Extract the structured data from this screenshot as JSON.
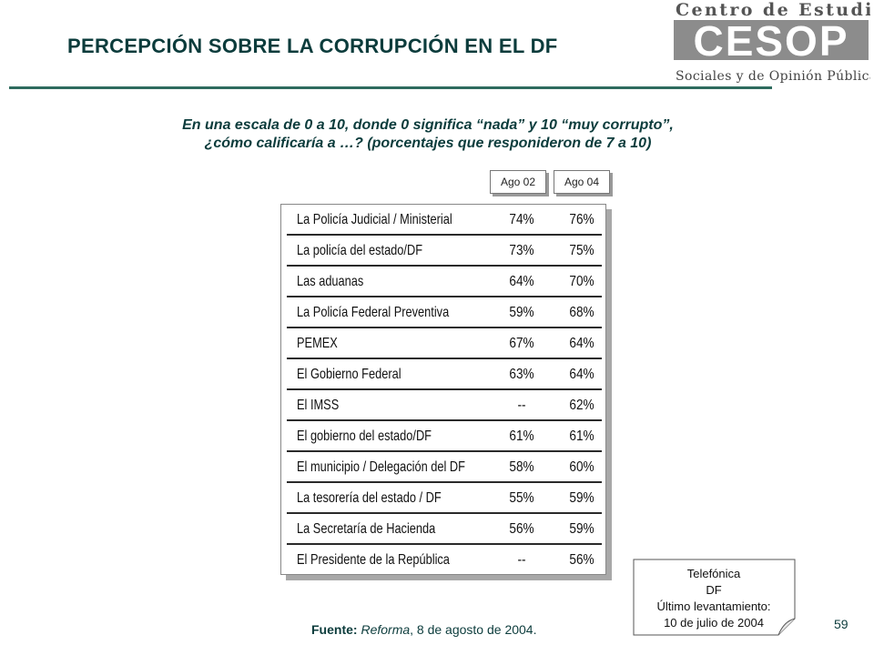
{
  "title": "PERCEPCIÓN SOBRE LA CORRUPCIÓN EN EL DF",
  "logo": {
    "line1": "Centro de Estudios",
    "mark": "CESOP",
    "line2": "Sociales y de Opinión Pública"
  },
  "question": {
    "line1": "En una escala de 0 a 10, donde 0 significa “nada” y 10 “muy corrupto”,",
    "line2": "¿cómo calificaría a …? (porcentajes que responideron de 7 a 10)"
  },
  "columns": [
    "Ago 02",
    "Ago 04"
  ],
  "rows": [
    {
      "label": "La Policía Judicial / Ministerial",
      "ago02": "74%",
      "ago04": "76%"
    },
    {
      "label": "La policía del estado/DF",
      "ago02": "73%",
      "ago04": "75%"
    },
    {
      "label": "Las aduanas",
      "ago02": "64%",
      "ago04": "70%"
    },
    {
      "label": "La Policía Federal Preventiva",
      "ago02": "59%",
      "ago04": "68%"
    },
    {
      "label": "PEMEX",
      "ago02": "67%",
      "ago04": "64%"
    },
    {
      "label": "El Gobierno Federal",
      "ago02": "63%",
      "ago04": "64%"
    },
    {
      "label": "El IMSS",
      "ago02": "--",
      "ago04": "62%"
    },
    {
      "label": "El gobierno del estado/DF",
      "ago02": "61%",
      "ago04": "61%"
    },
    {
      "label": "El municipio / Delegación del DF",
      "ago02": "58%",
      "ago04": "60%"
    },
    {
      "label": "La tesorería del estado / DF",
      "ago02": "55%",
      "ago04": "59%"
    },
    {
      "label": "La Secretaría de Hacienda",
      "ago02": "56%",
      "ago04": "59%"
    },
    {
      "label": "El Presidente de la República",
      "ago02": "--",
      "ago04": "56%"
    }
  ],
  "source": {
    "label": "Fuente:",
    "publication": "Reforma",
    "date": ", 8 de agosto de 2004."
  },
  "note": {
    "line1": "Telefónica",
    "line2": "DF",
    "line3": "Último levantamiento:",
    "line4": "10 de julio de 2004"
  },
  "page_number": "59",
  "colors": {
    "title": "#0c3c3c",
    "rule": "#2e6b5e",
    "logo_gray": "#8c8c8c"
  }
}
